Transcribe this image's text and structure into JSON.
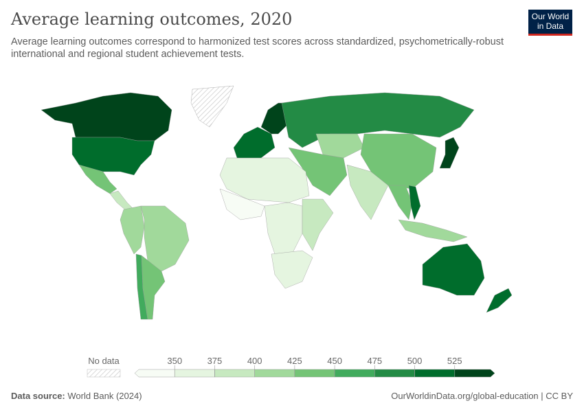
{
  "title": "Average learning outcomes, 2020",
  "subtitle": "Average learning outcomes correspond to harmonized test scores across standardized, psychometrically-robust international and regional student achievement tests.",
  "logo": {
    "line1": "Our World",
    "line2": "in Data",
    "bg": "#002147",
    "accent": "#ce261e"
  },
  "footer": {
    "source_label": "Data source:",
    "source": "World Bank (2024)",
    "link": "OurWorldinData.org/global-education | CC BY"
  },
  "chart_data": {
    "type": "choropleth-map",
    "title": "Average learning outcomes, 2020",
    "legend": {
      "no_data_label": "No data",
      "ticks": [
        "350",
        "375",
        "400",
        "425",
        "450",
        "475",
        "500",
        "525"
      ],
      "colors": [
        "#f7fcf5",
        "#e5f5e0",
        "#c7e9c0",
        "#a1d99b",
        "#74c476",
        "#41ab5d",
        "#238b45",
        "#006d2c",
        "#00441b"
      ],
      "placement": "bottom"
    },
    "regions": [
      {
        "name": "Canada",
        "bin": 8
      },
      {
        "name": "United States",
        "bin": 7
      },
      {
        "name": "Mexico",
        "bin": 4
      },
      {
        "name": "Central America",
        "bin": 2
      },
      {
        "name": "Brazil",
        "bin": 3
      },
      {
        "name": "Andean South America",
        "bin": 3
      },
      {
        "name": "Chile",
        "bin": 5
      },
      {
        "name": "Argentina",
        "bin": 4
      },
      {
        "name": "Greenland",
        "bin": -1
      },
      {
        "name": "Western Europe",
        "bin": 7
      },
      {
        "name": "Northern Europe",
        "bin": 8
      },
      {
        "name": "Russia",
        "bin": 6
      },
      {
        "name": "Central Asia",
        "bin": 3
      },
      {
        "name": "Middle East",
        "bin": 4
      },
      {
        "name": "North Africa",
        "bin": 1
      },
      {
        "name": "West Africa",
        "bin": 0
      },
      {
        "name": "Central Africa",
        "bin": 1
      },
      {
        "name": "East Africa",
        "bin": 2
      },
      {
        "name": "Southern Africa",
        "bin": 1
      },
      {
        "name": "India",
        "bin": 2
      },
      {
        "name": "China",
        "bin": 4
      },
      {
        "name": "Japan",
        "bin": 8
      },
      {
        "name": "Southeast Asia",
        "bin": 4
      },
      {
        "name": "Vietnam",
        "bin": 7
      },
      {
        "name": "Indonesia",
        "bin": 3
      },
      {
        "name": "Australia",
        "bin": 7
      },
      {
        "name": "New Zealand",
        "bin": 7
      }
    ]
  }
}
